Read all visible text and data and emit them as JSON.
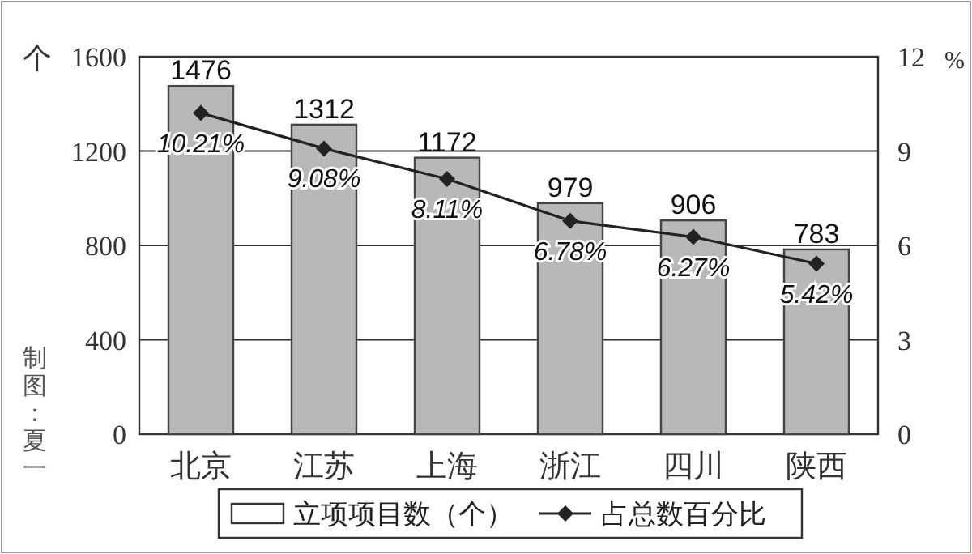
{
  "chart_data": {
    "type": "bar",
    "categories": [
      "北京",
      "江苏",
      "上海",
      "浙江",
      "四川",
      "陕西"
    ],
    "series": [
      {
        "name": "立项项目数（个）",
        "color": "#b8b8b8",
        "values": [
          1476,
          1312,
          1172,
          979,
          906,
          783
        ]
      },
      {
        "name": "占总数百分比",
        "type": "line",
        "axis": "y2",
        "color": "#222222",
        "marker": "diamond",
        "line_style": "solid",
        "values": [
          10.21,
          9.08,
          8.11,
          6.78,
          6.27,
          5.42
        ],
        "value_labels": [
          "10.21%",
          "9.08%",
          "8.11%",
          "6.78%",
          "6.27%",
          "5.42%"
        ]
      }
    ],
    "ylabel": "个",
    "y2label": "%",
    "ylim": [
      0,
      1600
    ],
    "yticks": [
      0,
      400,
      800,
      1200,
      1600
    ],
    "y2lim": [
      0,
      12
    ],
    "y2ticks": [
      0,
      3,
      6,
      9,
      12
    ],
    "grid": "y",
    "legend": "bottom",
    "data_labels": true,
    "annotations": [
      "制图：夏一"
    ]
  }
}
